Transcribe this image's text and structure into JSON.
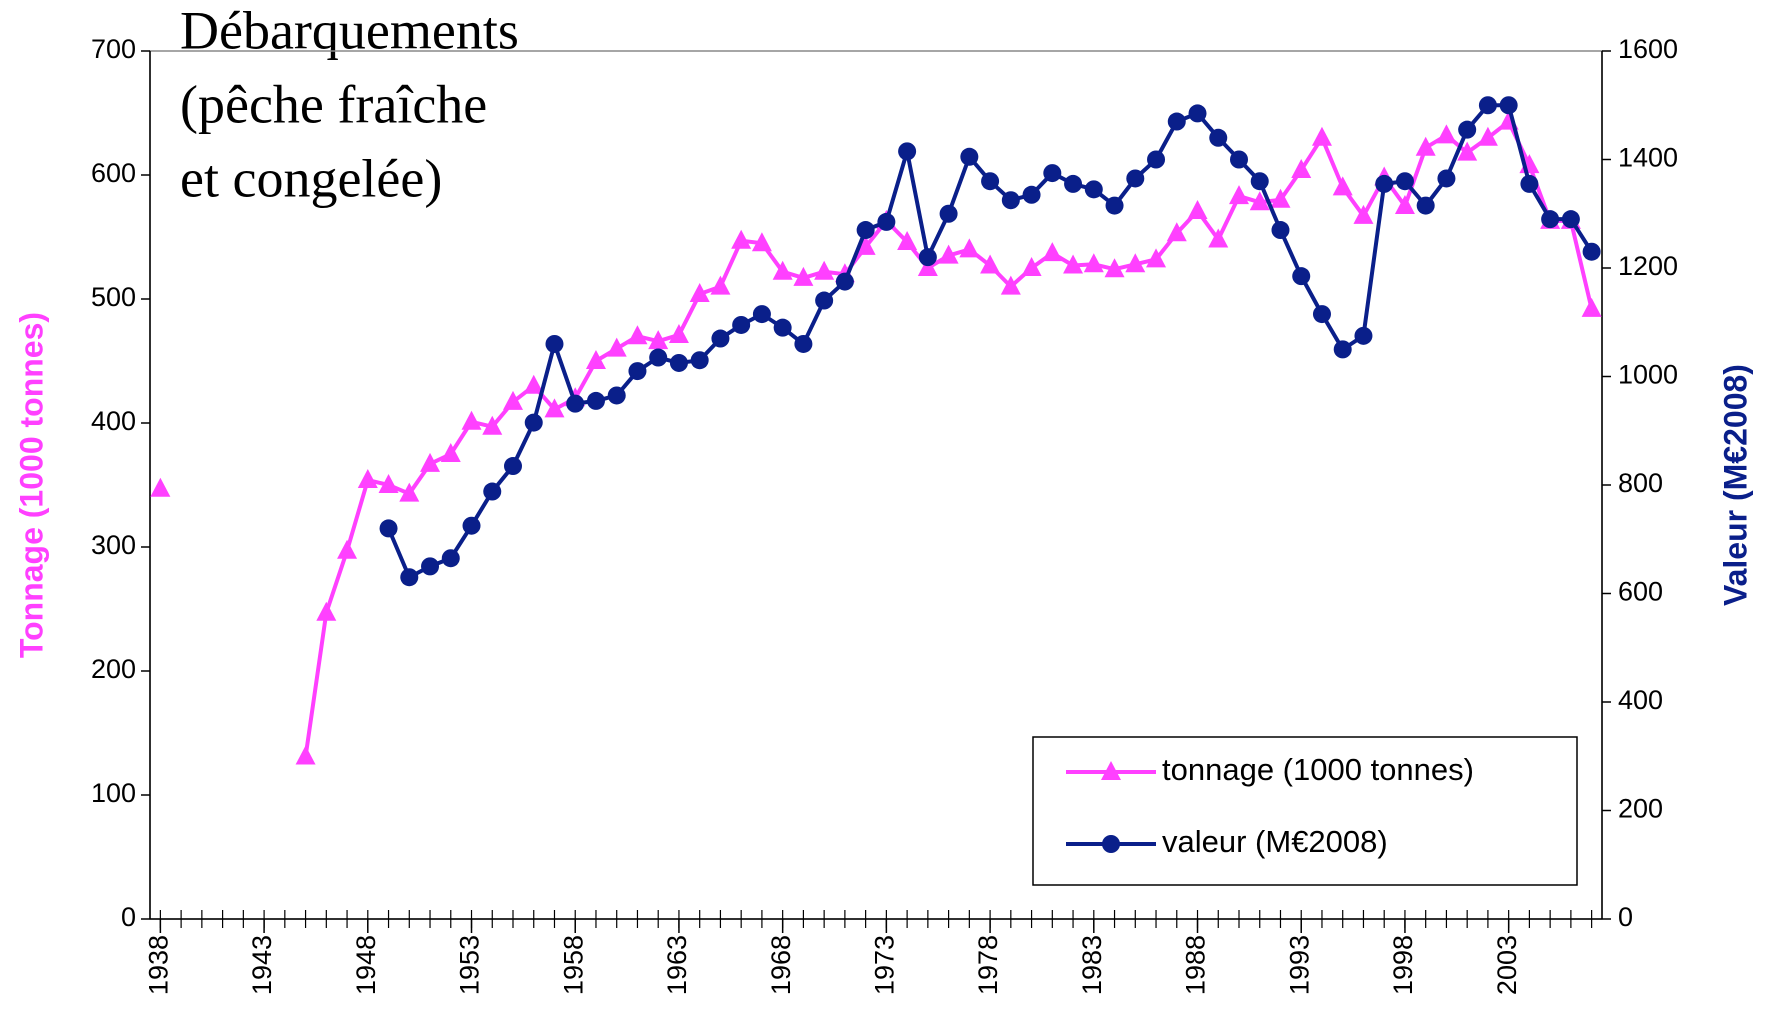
{
  "chart_data": {
    "type": "line",
    "title": [
      "Débarquements",
      "(pêche fraîche",
      "et congelée)"
    ],
    "y_label": "Tonnage (1000 tonnes)",
    "y2_label": "Valeur (M€2008)",
    "x": [
      1938,
      1939,
      1940,
      1941,
      1942,
      1943,
      1944,
      1945,
      1946,
      1947,
      1948,
      1949,
      1950,
      1951,
      1952,
      1953,
      1954,
      1955,
      1956,
      1957,
      1958,
      1959,
      1960,
      1961,
      1962,
      1963,
      1964,
      1965,
      1966,
      1967,
      1968,
      1969,
      1970,
      1971,
      1972,
      1973,
      1974,
      1975,
      1976,
      1977,
      1978,
      1979,
      1980,
      1981,
      1982,
      1983,
      1984,
      1985,
      1986,
      1987,
      1988,
      1989,
      1990,
      1991,
      1992,
      1993,
      1994,
      1995,
      1996,
      1997,
      1998,
      1999,
      2000,
      2001,
      2002,
      2003,
      2004,
      2005,
      2006,
      2007
    ],
    "xlim": [
      1937.5,
      2007.5
    ],
    "xticks": [
      1938,
      1943,
      1948,
      1953,
      1958,
      1963,
      1968,
      1973,
      1978,
      1983,
      1988,
      1993,
      1998,
      2003
    ],
    "ylim": [
      0,
      700
    ],
    "yticks": [
      0,
      100,
      200,
      300,
      400,
      500,
      600,
      700
    ],
    "y2lim": [
      0,
      1600
    ],
    "y2ticks": [
      0,
      200,
      400,
      600,
      800,
      1000,
      1200,
      1400,
      1600
    ],
    "legend": "bottom-right",
    "series": [
      {
        "name": "tonnage (1000 tonnes)",
        "color": "#ff40ff",
        "marker": "triangle",
        "values": [
          347,
          null,
          null,
          null,
          null,
          null,
          null,
          131,
          247,
          297,
          354,
          350,
          343,
          367,
          375,
          401,
          397,
          417,
          430,
          411,
          420,
          450,
          460,
          470,
          466,
          471,
          504,
          510,
          547,
          545,
          522,
          517,
          522,
          520,
          542,
          563,
          546,
          525,
          535,
          540,
          527,
          510,
          525,
          537,
          527,
          528,
          524,
          528,
          532,
          553,
          571,
          548,
          583,
          578,
          580,
          604,
          630,
          590,
          567,
          598,
          575,
          622,
          632,
          618,
          630,
          643,
          608,
          563,
          563,
          492
        ]
      },
      {
        "name": "valeur (M€2008)",
        "color": "#0a1f8a",
        "marker": "circle",
        "axis": "y2",
        "values": [
          null,
          null,
          null,
          null,
          null,
          null,
          null,
          null,
          null,
          null,
          null,
          720,
          630,
          650,
          665,
          725,
          788,
          835,
          915,
          1060,
          950,
          955,
          965,
          1010,
          1035,
          1025,
          1030,
          1070,
          1095,
          1115,
          1090,
          1060,
          1140,
          1175,
          1270,
          1285,
          1415,
          1220,
          1300,
          1405,
          1360,
          1325,
          1335,
          1375,
          1355,
          1345,
          1315,
          1365,
          1400,
          1470,
          1485,
          1440,
          1400,
          1360,
          1270,
          1185,
          1115,
          1050,
          1075,
          1355,
          1360,
          1315,
          1365,
          1455,
          1500,
          1500,
          1355,
          1290,
          1290,
          1230
        ]
      }
    ]
  }
}
